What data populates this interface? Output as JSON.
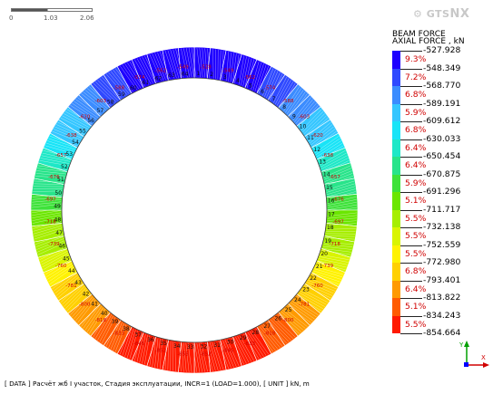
{
  "scale_bar": {
    "labels": [
      "0",
      "1.03",
      "2.06"
    ]
  },
  "logo": {
    "prefix": "GTS",
    "suffix": "NX"
  },
  "legend": {
    "title_line1": "BEAM FORCE",
    "title_line2": "AXIAL FORCE , kN",
    "values": [
      "-527.928",
      "-548.349",
      "-568.770",
      "-589.191",
      "-609.612",
      "-630.033",
      "-650.454",
      "-670.875",
      "-691.296",
      "-711.717",
      "-732.138",
      "-752.559",
      "-772.980",
      "-793.401",
      "-813.822",
      "-834.243",
      "-854.664"
    ],
    "percentages": [
      "9.3%",
      "7.2%",
      "6.8%",
      "5.9%",
      "6.8%",
      "6.4%",
      "6.4%",
      "5.9%",
      "5.1%",
      "5.5%",
      "5.5%",
      "5.5%",
      "6.8%",
      "6.4%",
      "5.1%",
      "5.5%"
    ],
    "colors": [
      "#1e00ff",
      "#2f49ff",
      "#3b8cff",
      "#35c6ff",
      "#19e4f7",
      "#1ee8c7",
      "#28e48a",
      "#3ee23a",
      "#6be600",
      "#a6ee00",
      "#d9f400",
      "#fff200",
      "#ffd000",
      "#ff9a00",
      "#ff5b00",
      "#ff1a00"
    ]
  },
  "ring_labels": [
    "1",
    "2",
    "3",
    "4",
    "5",
    "6",
    "7",
    "8",
    "9",
    "10",
    "11",
    "12",
    "13",
    "14",
    "15",
    "16",
    "17",
    "18",
    "19",
    "20",
    "21",
    "22",
    "23",
    "24",
    "25",
    "26",
    "27",
    "28",
    "29",
    "30",
    "31",
    "32",
    "33",
    "34",
    "35",
    "36",
    "37",
    "38",
    "39",
    "40",
    "41",
    "42",
    "43",
    "44",
    "45",
    "46",
    "47",
    "48",
    "49",
    "50",
    "51",
    "52",
    "53",
    "54",
    "55",
    "56",
    "57",
    "58",
    "59",
    "60",
    "61",
    "62",
    "63",
    "64"
  ],
  "ring_values": [
    "-528",
    "-549",
    "-562",
    "-574",
    "-588",
    "-603",
    "-620",
    "-638",
    "-657",
    "-676",
    "-697",
    "-718",
    "-739",
    "-760",
    "-781",
    "-800",
    "-818",
    "-833",
    "-845",
    "-852",
    "-855",
    "-852",
    "-845",
    "-833",
    "-818",
    "-800",
    "-781",
    "-760",
    "-739",
    "-718",
    "-697",
    "-676",
    "-657",
    "-638",
    "-620",
    "-603",
    "-588",
    "-574",
    "-562",
    "-549"
  ],
  "status": {
    "text": "[ DATA ] Расчёт жб I участок,  Стадия эксплуатации,  INCR=1 (LOAD=1.000),  [ UNIT ]  kN, m"
  },
  "axes": {
    "x": "X",
    "y": "Y"
  }
}
